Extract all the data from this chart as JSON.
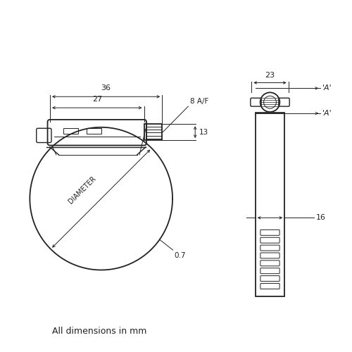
{
  "bg_color": "#ffffff",
  "line_color": "#222222",
  "text_color": "#222222",
  "fig_width": 5.0,
  "fig_height": 5.0,
  "dpi": 100,
  "footer_text": "All dimensions in mm",
  "dim_36": "36",
  "dim_27": "27",
  "dim_8af": "8 A/F",
  "dim_13": "13",
  "dim_diameter": "DIAMETER",
  "dim_07": "0.7",
  "dim_23": "23",
  "dim_16": "16",
  "label_A": "'A'"
}
